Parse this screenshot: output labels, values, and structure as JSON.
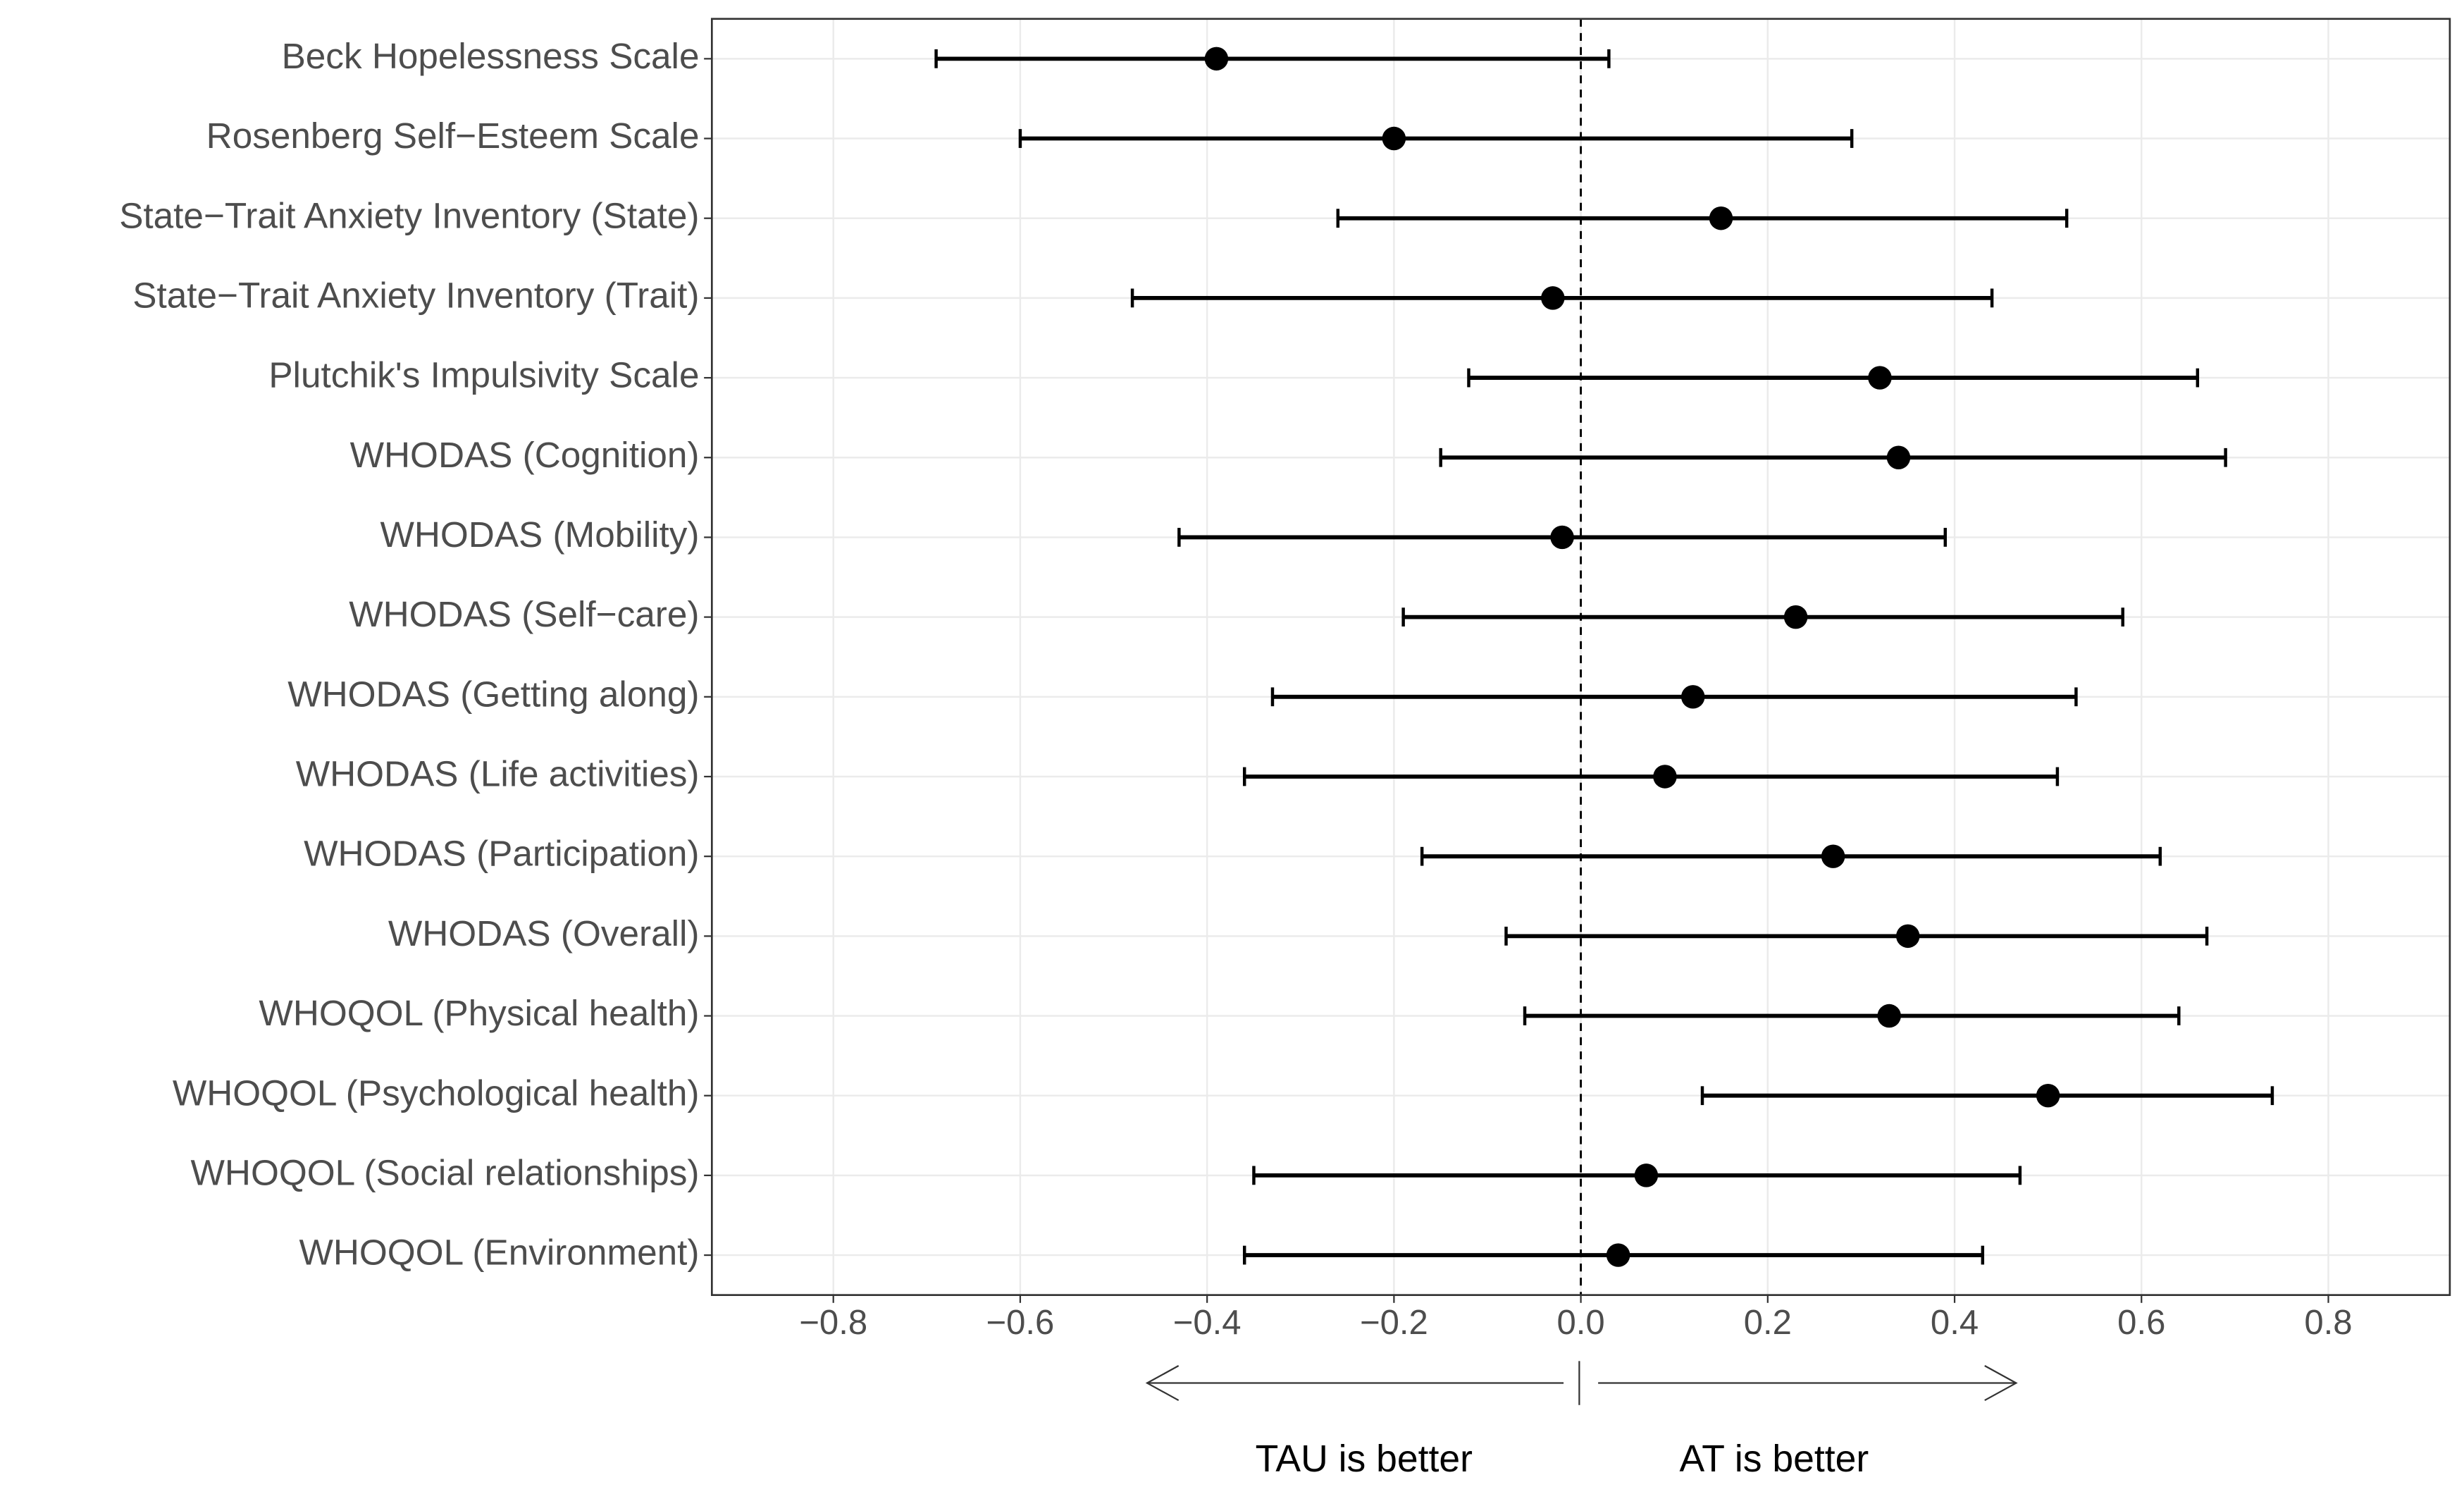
{
  "chart_data": {
    "type": "forest",
    "categories": [
      "Beck Hopelessness Scale",
      "Rosenberg Self−Esteem Scale",
      "State−Trait Anxiety Inventory (State)",
      "State−Trait Anxiety Inventory (Trait)",
      "Plutchik's Impulsivity Scale",
      "WHODAS (Cognition)",
      "WHODAS (Mobility)",
      "WHODAS (Self−care)",
      "WHODAS (Getting along)",
      "WHODAS (Life activities)",
      "WHODAS (Participation)",
      "WHODAS (Overall)",
      "WHOQOL (Physical health)",
      "WHOQOL (Psychological health)",
      "WHOQOL (Social relationships)",
      "WHOQOL (Environment)"
    ],
    "values": [
      -0.39,
      -0.2,
      0.15,
      -0.03,
      0.32,
      0.34,
      -0.02,
      0.23,
      0.12,
      0.09,
      0.27,
      0.35,
      0.33,
      0.5,
      0.07,
      0.04
    ],
    "lower": [
      -0.69,
      -0.6,
      -0.26,
      -0.48,
      -0.12,
      -0.15,
      -0.43,
      -0.19,
      -0.33,
      -0.36,
      -0.17,
      -0.08,
      -0.06,
      0.13,
      -0.35,
      -0.36
    ],
    "upper": [
      0.03,
      0.29,
      0.52,
      0.44,
      0.66,
      0.69,
      0.39,
      0.58,
      0.53,
      0.51,
      0.62,
      0.67,
      0.64,
      0.74,
      0.47,
      0.43
    ],
    "color": "#000000",
    "xlim": [
      -0.93,
      0.93
    ],
    "xticks": [
      {
        "value": -0.8,
        "label": "−0.8"
      },
      {
        "value": -0.6,
        "label": "−0.6"
      },
      {
        "value": -0.4,
        "label": "−0.4"
      },
      {
        "value": -0.2,
        "label": "−0.2"
      },
      {
        "value": 0,
        "label": "0.0"
      },
      0.2,
      0.4,
      0.6,
      0.8
    ],
    "reference_line": 0,
    "grid": true,
    "annotations": [
      "TAU is better",
      "AT is better"
    ]
  }
}
